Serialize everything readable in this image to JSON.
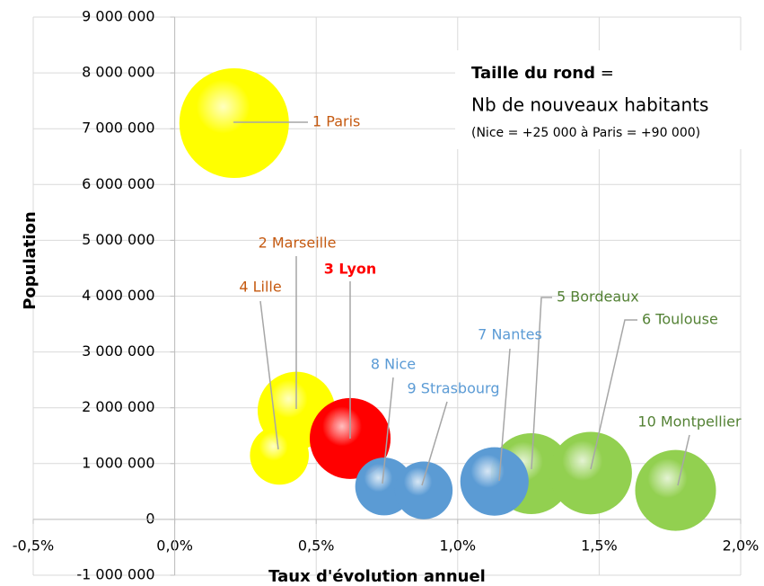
{
  "chart_data": {
    "type": "bubble",
    "x_label": "Taux d'évolution annuel",
    "y_label": "Population",
    "annotation": {
      "bold": "Taille du rond",
      "sep": " =",
      "line2": "Nb de nouveaux habitants",
      "line3": "(Nice = +25 000 à Paris = +90 000)"
    },
    "xlim": [
      -0.5,
      2.0
    ],
    "xticks": [
      {
        "value": -0.5,
        "label": "-0,5%"
      },
      {
        "value": 0,
        "label": "0,0%"
      },
      {
        "value": 0.5,
        "label": "0,5%"
      },
      {
        "value": 1.0,
        "label": "1,0%"
      },
      {
        "value": 1.5,
        "label": "1,5%"
      },
      {
        "value": 2.0,
        "label": "2,0%"
      }
    ],
    "ylim": [
      -1000000,
      9000000
    ],
    "yticks": [
      {
        "value": -1000000,
        "label": "-1 000 000"
      },
      0,
      {
        "value": 1000000,
        "label": "1 000 000"
      },
      {
        "value": 2000000,
        "label": "2 000 000"
      },
      {
        "value": 3000000,
        "label": "3 000 000"
      },
      {
        "value": 4000000,
        "label": "4 000 000"
      },
      {
        "value": 5000000,
        "label": "5 000 000"
      },
      {
        "value": 6000000,
        "label": "6 000 000"
      },
      {
        "value": 7000000,
        "label": "7 000 000"
      },
      {
        "value": 8000000,
        "label": "8 000 000"
      },
      {
        "value": 9000000,
        "label": "9 000 000"
      }
    ],
    "grid": true,
    "points": [
      {
        "label": "1 Paris",
        "x": 0.21,
        "y": 7100000,
        "size": 90000,
        "color": "#ffff00",
        "label_color": "#c55a11"
      },
      {
        "label": "2 Marseille",
        "x": 0.43,
        "y": 1950000,
        "size": 45000,
        "color": "#ffff00",
        "label_color": "#c55a11"
      },
      {
        "label": "3 Lyon",
        "x": 0.62,
        "y": 1450000,
        "size": 49000,
        "color": "#ff0000",
        "label_color": "#ff0000",
        "bold": true
      },
      {
        "label": "4 Lille",
        "x": 0.37,
        "y": 1150000,
        "size": 26000,
        "color": "#ffff00",
        "label_color": "#c55a11"
      },
      {
        "label": "5 Bordeaux",
        "x": 1.26,
        "y": 820000,
        "size": 49000,
        "color": "#92d050",
        "label_color": "#548235"
      },
      {
        "label": "6 Toulouse",
        "x": 1.47,
        "y": 830000,
        "size": 51000,
        "color": "#92d050",
        "label_color": "#548235"
      },
      {
        "label": "7 Nantes",
        "x": 1.13,
        "y": 680000,
        "size": 35000,
        "color": "#5b9bd5",
        "label_color": "#5b9bd5"
      },
      {
        "label": "8 Nice",
        "x": 0.74,
        "y": 590000,
        "size": 25000,
        "color": "#5b9bd5",
        "label_color": "#5b9bd5"
      },
      {
        "label": "9 Strasbourg",
        "x": 0.88,
        "y": 520000,
        "size": 25000,
        "color": "#5b9bd5",
        "label_color": "#5b9bd5"
      },
      {
        "label": "10 Montpellier",
        "x": 1.77,
        "y": 520000,
        "size": 49000,
        "color": "#92d050",
        "label_color": "#548235"
      }
    ]
  }
}
